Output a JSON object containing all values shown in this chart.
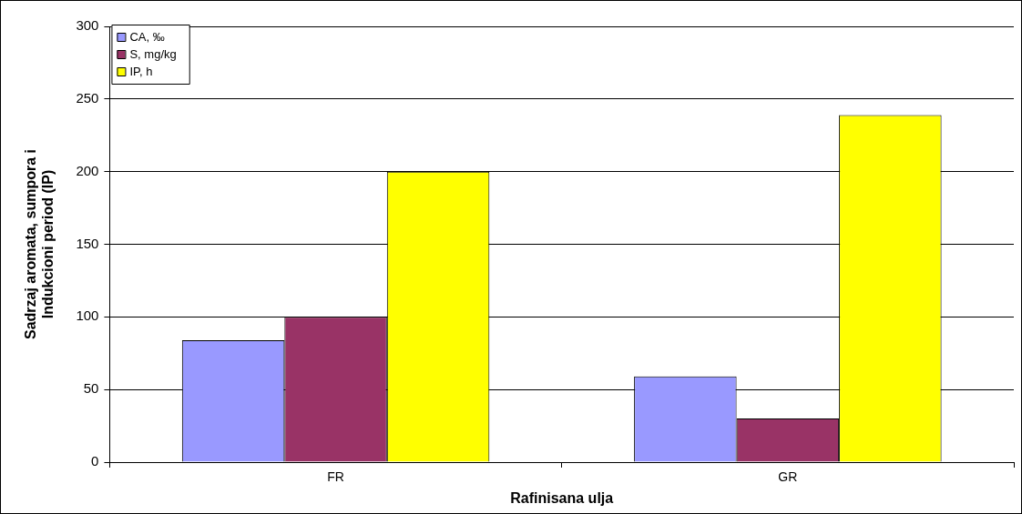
{
  "chart_data": {
    "type": "bar",
    "xlabel": "Rafinisana ulja",
    "ylabel": "Sadrzaj aromata, sumpora i\nIndukcioni period (IP)",
    "categories": [
      "FR",
      "GR"
    ],
    "series": [
      {
        "name": "CA, ‰",
        "color": "#9999ff",
        "values": [
          84,
          59
        ]
      },
      {
        "name": "S, mg/kg",
        "color": "#993366",
        "values": [
          100,
          30
        ]
      },
      {
        "name": "IP, h",
        "color": "#ffff00",
        "values": [
          200,
          239
        ]
      }
    ],
    "ylim": [
      0,
      300
    ],
    "yticks": [
      0,
      50,
      100,
      150,
      200,
      250,
      300
    ],
    "grid": "y",
    "legend": "top left"
  }
}
